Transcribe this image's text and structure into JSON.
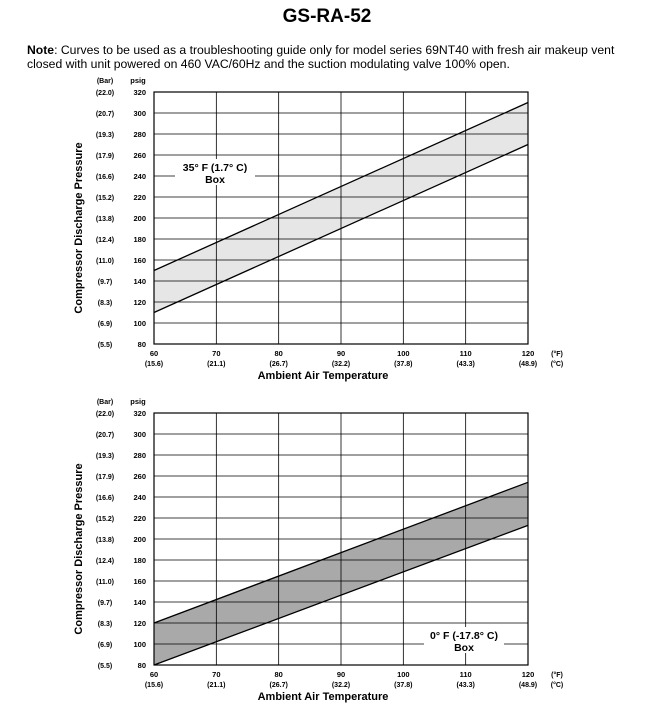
{
  "title": "GS-RA-52",
  "note": {
    "label": "Note",
    "text": ": Curves to be used as a troubleshooting guide only for model series 69NT40 with fresh air makeup vent closed with unit powered on 460 VAC/60Hz and the suction modulating valve 100% open."
  },
  "colors": {
    "band_top": "#e6e6e6",
    "band_bottom": "#a9a9a9",
    "grid": "#000000"
  },
  "chart_data": [
    {
      "type": "area",
      "annotation_line1": "35° F (1.7° C)",
      "annotation_line2": "Box",
      "xlabel": "Ambient Air Temperature",
      "ylabel": "Compressor Discharge Pressure",
      "y_unit_bar": "(Bar)",
      "y_unit_psig": "psig",
      "x_unit_f": "(°F)",
      "x_unit_c": "(°C)",
      "xlim": [
        60,
        120
      ],
      "ylim": [
        80,
        320
      ],
      "x_ticks": [
        60,
        70,
        80,
        90,
        100,
        110,
        120
      ],
      "x_ticks_c": [
        "(15.6)",
        "(21.1)",
        "(26.7)",
        "(32.2)",
        "(37.8)",
        "(43.3)",
        "(48.9)"
      ],
      "y_ticks": [
        80,
        100,
        120,
        140,
        160,
        180,
        200,
        220,
        240,
        260,
        280,
        300,
        320
      ],
      "y_ticks_bar": [
        "(5.5)",
        "(6.9)",
        "(8.3)",
        "(9.7)",
        "(11.0)",
        "(12.4)",
        "(13.8)",
        "(15.2)",
        "(16.6)",
        "(17.9)",
        "(19.3)",
        "(20.7)",
        "(22.0)"
      ],
      "grid": true,
      "series": [
        {
          "x": [
            60,
            120
          ],
          "y": [
            150,
            310
          ]
        },
        {
          "x": [
            60,
            120
          ],
          "y": [
            110,
            270
          ]
        }
      ]
    },
    {
      "type": "area",
      "annotation_line1": "0° F (-17.8° C)",
      "annotation_line2": "Box",
      "xlabel": "Ambient Air Temperature",
      "ylabel": "Compressor Discharge Pressure",
      "y_unit_bar": "(Bar)",
      "y_unit_psig": "psig",
      "x_unit_f": "(°F)",
      "x_unit_c": "(°C)",
      "xlim": [
        60,
        120
      ],
      "ylim": [
        80,
        320
      ],
      "x_ticks": [
        60,
        70,
        80,
        90,
        100,
        110,
        120
      ],
      "x_ticks_c": [
        "(15.6)",
        "(21.1)",
        "(26.7)",
        "(32.2)",
        "(37.8)",
        "(43.3)",
        "(48.9)"
      ],
      "y_ticks": [
        80,
        100,
        120,
        140,
        160,
        180,
        200,
        220,
        240,
        260,
        280,
        300,
        320
      ],
      "y_ticks_bar": [
        "(5.5)",
        "(6.9)",
        "(8.3)",
        "(9.7)",
        "(11.0)",
        "(12.4)",
        "(13.8)",
        "(15.2)",
        "(16.6)",
        "(17.9)",
        "(19.3)",
        "(20.7)",
        "(22.0)"
      ],
      "grid": true,
      "series": [
        {
          "x": [
            60,
            120
          ],
          "y": [
            120,
            254
          ]
        },
        {
          "x": [
            60,
            120
          ],
          "y": [
            80,
            213
          ]
        }
      ]
    }
  ]
}
